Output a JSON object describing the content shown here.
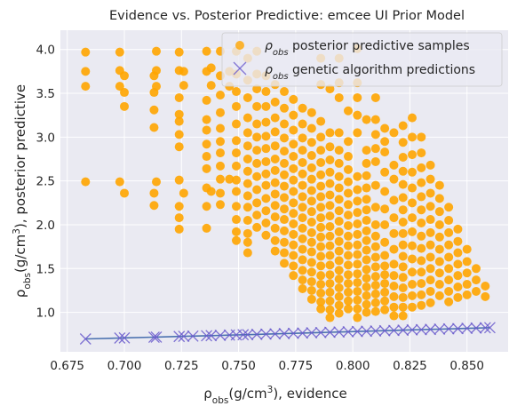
{
  "chart_data": {
    "type": "scatter",
    "title": "Evidence vs. Posterior Predictive: emcee UI Prior Model",
    "xlabel": "ρ_obs(g/cm³), evidence",
    "ylabel": "ρ_obs(g/cm³), posterior predictive",
    "xlim": [
      0.672,
      0.868
    ],
    "ylim": [
      0.55,
      4.22
    ],
    "xticks": [
      0.675,
      0.7,
      0.725,
      0.75,
      0.775,
      0.8,
      0.825,
      0.85
    ],
    "xtick_labels": [
      "0.675",
      "0.700",
      "0.725",
      "0.750",
      "0.775",
      "0.800",
      "0.825",
      "0.850"
    ],
    "yticks": [
      1.0,
      1.5,
      2.0,
      2.5,
      3.0,
      3.5,
      4.0
    ],
    "ytick_labels": [
      "1.0",
      "1.5",
      "2.0",
      "2.5",
      "3.0",
      "3.5",
      "4.0"
    ],
    "grid": true,
    "background": "#EAEAF2",
    "legend_position": "upper-right",
    "series": [
      {
        "name": "posterior predictive samples",
        "name_subscript_prefix": "ρ",
        "name_subscript": "obs",
        "marker": "circle",
        "color": "#FFA500",
        "columns": [
          {
            "x": 0.683,
            "y": [
              3.97,
              3.75,
              3.58,
              2.49
            ]
          },
          {
            "x": 0.698,
            "y": [
              3.97,
              3.76,
              3.58,
              2.49
            ]
          },
          {
            "x": 0.7,
            "y": [
              3.7,
              3.51,
              3.35,
              2.36
            ]
          },
          {
            "x": 0.713,
            "y": [
              3.7,
              3.51,
              3.31,
              3.11,
              2.36,
              2.22
            ]
          },
          {
            "x": 0.714,
            "y": [
              3.98,
              3.76,
              3.58,
              2.49
            ]
          },
          {
            "x": 0.724,
            "y": [
              3.97,
              3.76,
              3.45,
              3.26,
              3.18,
              3.03,
              2.89,
              2.51,
              2.21,
              2.08,
              1.95
            ]
          },
          {
            "x": 0.726,
            "y": [
              3.75,
              3.59,
              2.36
            ]
          },
          {
            "x": 0.736,
            "y": [
              3.98,
              3.75,
              3.42,
              3.2,
              3.08,
              2.92,
              2.78,
              2.64,
              2.42,
              2.21,
              1.96
            ]
          },
          {
            "x": 0.738,
            "y": [
              3.79,
              3.59,
              2.38
            ]
          },
          {
            "x": 0.742,
            "y": [
              3.98,
              3.7,
              3.48,
              3.28,
              3.1,
              2.95,
              2.82,
              2.67,
              2.52,
              2.36,
              2.23
            ]
          },
          {
            "x": 0.746,
            "y": [
              3.75,
              3.58,
              2.52
            ]
          },
          {
            "x": 0.749,
            "y": [
              3.98,
              3.72,
              3.52,
              3.35,
              3.15,
              2.96,
              2.82,
              2.67,
              2.51,
              2.38,
              2.21,
              2.06,
              1.92,
              1.82
            ]
          },
          {
            "x": 0.754,
            "y": [
              3.9,
              3.65,
              3.45,
              3.22,
              3.05,
              2.9,
              2.75,
              2.61,
              2.47,
              2.33,
              2.2,
              2.05,
              1.9,
              1.8,
              1.68
            ]
          },
          {
            "x": 0.758,
            "y": [
              3.98,
              3.72,
              3.55,
              3.35,
              3.15,
              3.0,
              2.85,
              2.7,
              2.55,
              2.4,
              2.25,
              2.11,
              1.97
            ]
          },
          {
            "x": 0.762,
            "y": [
              3.7,
              3.52,
              3.35,
              3.17,
              3.01,
              2.87,
              2.72,
              2.58,
              2.45,
              2.3,
              2.16,
              2.02,
              1.88
            ]
          },
          {
            "x": 0.766,
            "y": [
              3.6,
              3.4,
              3.22,
              3.06,
              2.9,
              2.75,
              2.62,
              2.48,
              2.35,
              2.22,
              2.09,
              1.96,
              1.82,
              1.7
            ]
          },
          {
            "x": 0.77,
            "y": [
              3.52,
              3.33,
              3.15,
              2.99,
              2.84,
              2.7,
              2.57,
              2.44,
              2.31,
              2.18,
              2.06,
              1.93,
              1.8,
              1.68,
              1.56
            ]
          },
          {
            "x": 0.774,
            "y": [
              3.43,
              3.25,
              3.08,
              2.92,
              2.78,
              2.64,
              2.51,
              2.38,
              2.25,
              2.13,
              2.01,
              1.89,
              1.77,
              1.65,
              1.53,
              1.42
            ]
          },
          {
            "x": 0.778,
            "y": [
              3.33,
              3.15,
              2.99,
              2.85,
              2.71,
              2.58,
              2.45,
              2.32,
              2.2,
              2.08,
              1.96,
              1.84,
              1.72,
              1.6,
              1.48,
              1.37,
              1.27
            ]
          },
          {
            "x": 0.782,
            "y": [
              3.28,
              3.1,
              2.94,
              2.79,
              2.65,
              2.52,
              2.39,
              2.27,
              2.15,
              2.03,
              1.91,
              1.8,
              1.69,
              1.57,
              1.46,
              1.35,
              1.25,
              1.15
            ]
          },
          {
            "x": 0.786,
            "y": [
              3.9,
              3.6,
              3.18,
              3.0,
              2.85,
              2.71,
              2.57,
              2.44,
              2.32,
              2.2,
              2.08,
              1.97,
              1.86,
              1.75,
              1.64,
              1.53,
              1.42,
              1.32,
              1.22,
              1.12,
              1.04
            ]
          },
          {
            "x": 0.79,
            "y": [
              3.55,
              3.05,
              2.89,
              2.74,
              2.6,
              2.47,
              2.34,
              2.22,
              2.1,
              1.98,
              1.87,
              1.76,
              1.65,
              1.54,
              1.43,
              1.33,
              1.23,
              1.13,
              1.03,
              0.94
            ]
          },
          {
            "x": 0.794,
            "y": [
              3.9,
              3.62,
              3.45,
              3.05,
              2.85,
              2.7,
              2.55,
              2.42,
              2.29,
              2.16,
              2.04,
              1.92,
              1.81,
              1.7,
              1.59,
              1.48,
              1.38,
              1.28,
              1.18,
              1.08,
              0.99
            ]
          },
          {
            "x": 0.798,
            "y": [
              3.3,
              2.95,
              2.78,
              2.63,
              2.49,
              2.36,
              2.23,
              2.11,
              1.99,
              1.87,
              1.76,
              1.65,
              1.54,
              1.43,
              1.33,
              1.23,
              1.13,
              1.04
            ]
          },
          {
            "x": 0.802,
            "y": [
              4.01,
              3.62,
              3.45,
              3.25,
              3.05,
              2.55,
              2.4,
              2.27,
              2.14,
              2.01,
              1.89,
              1.77,
              1.66,
              1.55,
              1.44,
              1.34,
              1.24,
              1.14,
              1.04,
              0.94
            ]
          },
          {
            "x": 0.806,
            "y": [
              3.2,
              2.85,
              2.7,
              2.56,
              2.42,
              2.29,
              2.17,
              2.05,
              1.93,
              1.82,
              1.71,
              1.6,
              1.49,
              1.39,
              1.29,
              1.19,
              1.09,
              1.0
            ]
          },
          {
            "x": 0.81,
            "y": [
              3.45,
              3.2,
              3.03,
              2.87,
              2.72,
              2.45,
              2.2,
              2.0,
              1.87,
              1.75,
              1.63,
              1.52,
              1.41,
              1.31,
              1.21,
              1.11,
              1.01
            ]
          },
          {
            "x": 0.814,
            "y": [
              3.1,
              2.95,
              2.83,
              2.6,
              2.38,
              2.18,
              2.0,
              1.8,
              1.65,
              1.53,
              1.43,
              1.33,
              1.23,
              1.13,
              1.03
            ]
          },
          {
            "x": 0.818,
            "y": [
              3.05,
              2.68,
              2.52,
              2.28,
              2.08,
              1.9,
              1.72,
              1.55,
              1.42,
              1.3,
              1.18,
              1.06,
              0.96
            ]
          },
          {
            "x": 0.822,
            "y": [
              3.13,
              2.94,
              2.77,
              2.61,
              2.46,
              2.31,
              2.17,
              2.03,
              1.9,
              1.77,
              1.64,
              1.52,
              1.4,
              1.28,
              1.17,
              1.06,
              0.96
            ]
          },
          {
            "x": 0.826,
            "y": [
              3.22,
              3.0,
              2.8,
              2.6,
              2.42,
              2.25,
              2.08,
              1.92,
              1.76,
              1.61,
              1.46,
              1.32,
              1.19,
              1.06
            ]
          },
          {
            "x": 0.83,
            "y": [
              3.0,
              2.82,
              2.65,
              2.48,
              2.32,
              2.17,
              2.02,
              1.87,
              1.73,
              1.59,
              1.46,
              1.33,
              1.2,
              1.08
            ]
          },
          {
            "x": 0.834,
            "y": [
              2.68,
              2.52,
              2.36,
              2.21,
              2.06,
              1.91,
              1.77,
              1.63,
              1.5,
              1.37,
              1.24,
              1.11
            ]
          },
          {
            "x": 0.838,
            "y": [
              2.45,
              2.3,
              2.15,
              2.0,
              1.86,
              1.72,
              1.58,
              1.45,
              1.32,
              1.19
            ]
          },
          {
            "x": 0.842,
            "y": [
              2.2,
              2.05,
              1.91,
              1.77,
              1.63,
              1.5,
              1.37,
              1.24,
              1.12
            ]
          },
          {
            "x": 0.846,
            "y": [
              1.95,
              1.81,
              1.68,
              1.55,
              1.42,
              1.29,
              1.17
            ]
          },
          {
            "x": 0.85,
            "y": [
              1.72,
              1.58,
              1.45,
              1.32,
              1.2
            ]
          },
          {
            "x": 0.854,
            "y": [
              1.5,
              1.37,
              1.24
            ]
          },
          {
            "x": 0.858,
            "y": [
              1.3,
              1.18
            ]
          }
        ]
      },
      {
        "name": "genetic algorithm predictions",
        "name_subscript_prefix": "ρ",
        "name_subscript": "obs",
        "marker": "x",
        "color": "#6A5ACD",
        "line_color": "#4C72B0",
        "x": [
          0.683,
          0.698,
          0.7,
          0.713,
          0.714,
          0.724,
          0.726,
          0.73,
          0.736,
          0.738,
          0.742,
          0.746,
          0.749,
          0.752,
          0.754,
          0.758,
          0.762,
          0.766,
          0.77,
          0.774,
          0.778,
          0.782,
          0.786,
          0.79,
          0.794,
          0.798,
          0.802,
          0.806,
          0.81,
          0.814,
          0.818,
          0.822,
          0.826,
          0.83,
          0.834,
          0.838,
          0.842,
          0.846,
          0.85,
          0.854,
          0.858,
          0.86
        ],
        "y": [
          0.697,
          0.707,
          0.709,
          0.717,
          0.718,
          0.725,
          0.727,
          0.729,
          0.733,
          0.735,
          0.738,
          0.741,
          0.743,
          0.745,
          0.746,
          0.749,
          0.752,
          0.755,
          0.758,
          0.761,
          0.764,
          0.767,
          0.77,
          0.773,
          0.776,
          0.779,
          0.782,
          0.785,
          0.788,
          0.791,
          0.794,
          0.797,
          0.8,
          0.803,
          0.806,
          0.809,
          0.812,
          0.815,
          0.818,
          0.821,
          0.824,
          0.826
        ]
      }
    ]
  }
}
